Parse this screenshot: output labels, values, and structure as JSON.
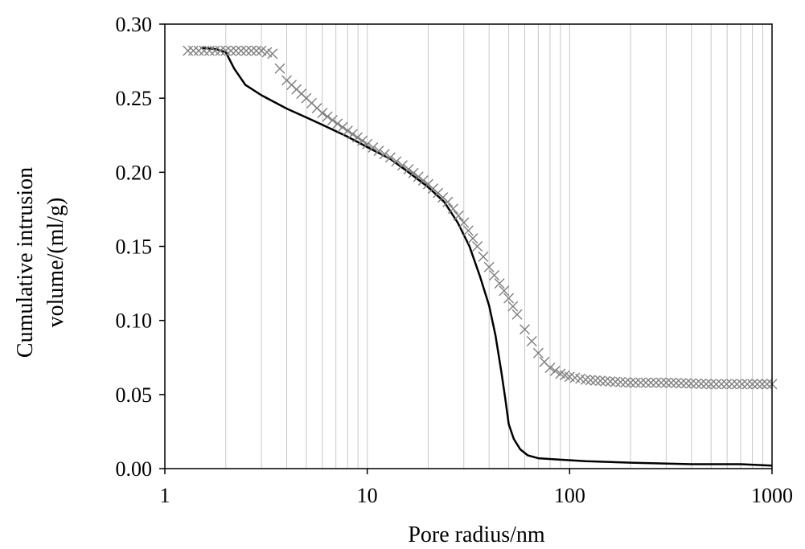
{
  "chart_data": {
    "type": "line",
    "title": "",
    "xlabel": "Pore radius/nm",
    "ylabel_lines": [
      "Cumulative intrusion",
      "volume/(ml/g)"
    ],
    "x_scale": "log",
    "xlim": [
      1,
      1000
    ],
    "ylim": [
      0,
      0.3
    ],
    "x_ticks": [
      1,
      10,
      100,
      1000
    ],
    "x_tick_labels": [
      "1",
      "10",
      "100",
      "1000"
    ],
    "y_ticks": [
      0,
      0.05,
      0.1,
      0.15,
      0.2,
      0.25,
      0.3
    ],
    "y_tick_labels": [
      "0.00",
      "0.05",
      "0.10",
      "0.15",
      "0.20",
      "0.25",
      "0.30"
    ],
    "grid": "vertical minor log gridlines",
    "legend": "none",
    "series": [
      {
        "style": "solid line",
        "color": "#000000",
        "points": [
          [
            1.5,
            0.284
          ],
          [
            1.8,
            0.283
          ],
          [
            2.0,
            0.281
          ],
          [
            2.2,
            0.27
          ],
          [
            2.5,
            0.259
          ],
          [
            3.0,
            0.252
          ],
          [
            4.0,
            0.243
          ],
          [
            5.0,
            0.237
          ],
          [
            6.0,
            0.232
          ],
          [
            8.0,
            0.224
          ],
          [
            10.0,
            0.217
          ],
          [
            13.0,
            0.209
          ],
          [
            16.0,
            0.2
          ],
          [
            20.0,
            0.19
          ],
          [
            24.0,
            0.18
          ],
          [
            28.0,
            0.166
          ],
          [
            32.0,
            0.15
          ],
          [
            36.0,
            0.13
          ],
          [
            40.0,
            0.11
          ],
          [
            43.0,
            0.09
          ],
          [
            46.0,
            0.065
          ],
          [
            48.0,
            0.048
          ],
          [
            50.0,
            0.03
          ],
          [
            53.0,
            0.02
          ],
          [
            57.0,
            0.013
          ],
          [
            62.0,
            0.009
          ],
          [
            70.0,
            0.007
          ],
          [
            90.0,
            0.006
          ],
          [
            120.0,
            0.005
          ],
          [
            200.0,
            0.004
          ],
          [
            400.0,
            0.003
          ],
          [
            700.0,
            0.003
          ],
          [
            1000.0,
            0.002
          ]
        ]
      },
      {
        "style": "x markers",
        "color": "#7f7f7f",
        "points": [
          [
            1.3,
            0.282
          ],
          [
            2.0,
            0.282
          ],
          [
            3.0,
            0.282
          ],
          [
            3.4,
            0.28
          ],
          [
            3.7,
            0.27
          ],
          [
            4.0,
            0.262
          ],
          [
            5.0,
            0.25
          ],
          [
            6.0,
            0.24
          ],
          [
            8.0,
            0.228
          ],
          [
            10.0,
            0.219
          ],
          [
            13.0,
            0.21
          ],
          [
            16.0,
            0.202
          ],
          [
            20.0,
            0.192
          ],
          [
            25.0,
            0.18
          ],
          [
            30.0,
            0.166
          ],
          [
            35.0,
            0.15
          ],
          [
            40.0,
            0.136
          ],
          [
            45.0,
            0.125
          ],
          [
            50.0,
            0.115
          ],
          [
            55.0,
            0.104
          ],
          [
            60.0,
            0.094
          ],
          [
            65.0,
            0.086
          ],
          [
            70.0,
            0.078
          ],
          [
            75.0,
            0.072
          ],
          [
            80.0,
            0.068
          ],
          [
            90.0,
            0.064
          ],
          [
            100.0,
            0.062
          ],
          [
            120.0,
            0.06
          ],
          [
            150.0,
            0.059
          ],
          [
            200.0,
            0.058
          ],
          [
            300.0,
            0.058
          ],
          [
            500.0,
            0.057
          ],
          [
            800.0,
            0.057
          ],
          [
            1000.0,
            0.057
          ]
        ]
      }
    ]
  }
}
